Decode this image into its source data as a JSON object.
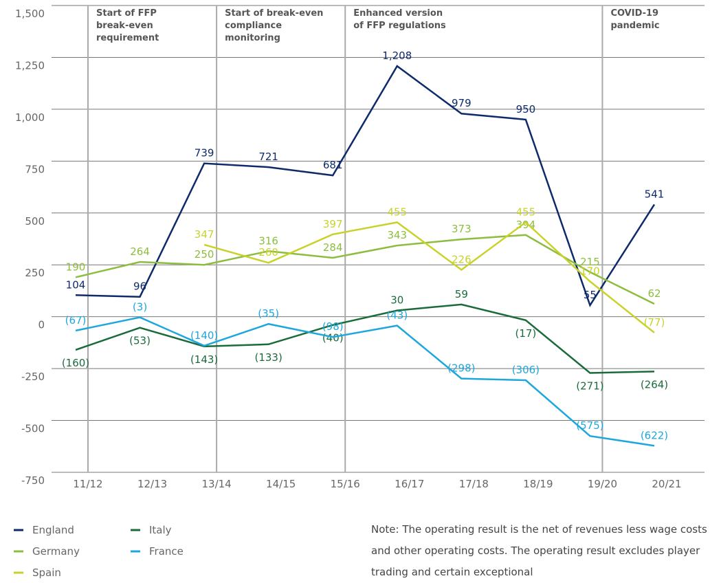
{
  "chart_data": {
    "type": "line",
    "categories": [
      "11/12",
      "12/13",
      "13/14",
      "14/15",
      "15/16",
      "16/17",
      "17/18",
      "18/19",
      "19/20",
      "20/21"
    ],
    "series": [
      {
        "name": "England",
        "color": "#0d2a6b",
        "values": [
          104,
          96,
          739,
          721,
          681,
          1208,
          979,
          950,
          55,
          541
        ],
        "value_labels": [
          "104",
          "96",
          "739",
          "721",
          "681",
          "1,208",
          "979",
          "950",
          "55",
          "541"
        ]
      },
      {
        "name": "Germany",
        "color": "#8cbd3e",
        "values": [
          190,
          264,
          250,
          316,
          284,
          343,
          373,
          394,
          215,
          62
        ],
        "value_labels": [
          "190",
          "264",
          "250",
          "316",
          "284",
          "343",
          "373",
          "394",
          "215",
          "62"
        ]
      },
      {
        "name": "Spain",
        "color": "#c9d22a",
        "values": [
          null,
          null,
          347,
          260,
          397,
          455,
          226,
          455,
          170,
          -77
        ],
        "value_labels": [
          null,
          null,
          "347",
          "260",
          "397",
          "455",
          "226",
          "455",
          "170",
          "(77)"
        ]
      },
      {
        "name": "Italy",
        "color": "#1a6b3a",
        "values": [
          -160,
          -53,
          -143,
          -133,
          -40,
          30,
          59,
          -17,
          -271,
          -264
        ],
        "value_labels": [
          "(160)",
          "(53)",
          "(143)",
          "(133)",
          "(40)",
          "30",
          "59",
          "(17)",
          "(271)",
          "(264)"
        ]
      },
      {
        "name": "France",
        "color": "#1da7dc",
        "values": [
          -67,
          -3,
          -140,
          -35,
          -98,
          -43,
          -298,
          -306,
          -575,
          -622
        ],
        "value_labels": [
          "(67)",
          "(3)",
          "(140)",
          "(35)",
          "(98)",
          "(43)",
          "(298)",
          "(306)",
          "(575)",
          "(622)"
        ]
      }
    ],
    "ylim": [
      -750,
      1500
    ],
    "yticks": [
      -750,
      -500,
      -250,
      0,
      250,
      500,
      750,
      {
        "value": 1000,
        "label": "1,000"
      },
      {
        "value": 1250,
        "label": "1,250"
      },
      {
        "value": 1500,
        "label": "1,500"
      }
    ],
    "grid": true,
    "annotations": [
      {
        "at": "11/12",
        "lines": [
          "Start of FFP",
          "break-even",
          "requirement"
        ]
      },
      {
        "at": "13/14",
        "lines": [
          "Start of break-even",
          "compliance",
          "monitoring"
        ]
      },
      {
        "at": "15/16",
        "lines": [
          "Enhanced version",
          "of FFP regulations"
        ]
      },
      {
        "at": "19/20",
        "lines": [
          "COVID-19",
          "pandemic"
        ]
      }
    ],
    "note": "Note: The operating result is the net of revenues less wage costs and other operating costs. The operating result excludes player trading and certain exceptional"
  }
}
